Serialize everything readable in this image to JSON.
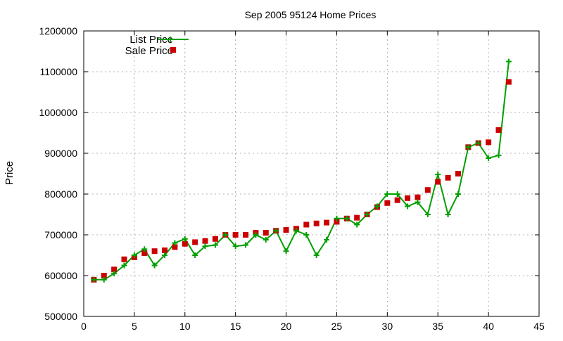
{
  "chart_data": {
    "type": "line",
    "title": "Sep 2005 95124 Home Prices",
    "xlabel": "",
    "ylabel": "Price",
    "xlim": [
      0,
      45
    ],
    "ylim": [
      500000,
      1200000
    ],
    "x_ticks": [
      0,
      5,
      10,
      15,
      20,
      25,
      30,
      35,
      40,
      45
    ],
    "y_ticks": [
      500000,
      600000,
      700000,
      800000,
      900000,
      1000000,
      1100000,
      1200000
    ],
    "grid": true,
    "legend_position": "top-left",
    "series": [
      {
        "name": "List Price",
        "style": "line with plus markers",
        "color": "#00a000",
        "x": [
          1,
          2,
          3,
          4,
          5,
          6,
          7,
          8,
          9,
          10,
          11,
          12,
          13,
          14,
          15,
          16,
          17,
          18,
          19,
          20,
          21,
          22,
          23,
          24,
          25,
          26,
          27,
          28,
          29,
          30,
          31,
          32,
          33,
          34,
          35,
          36,
          37,
          38,
          39,
          40,
          41,
          42
        ],
        "y": [
          590000,
          590000,
          605000,
          625000,
          650000,
          665000,
          625000,
          650000,
          680000,
          690000,
          650000,
          672000,
          675000,
          700000,
          672000,
          675000,
          700000,
          688000,
          710000,
          660000,
          710000,
          700000,
          650000,
          688000,
          740000,
          740000,
          725000,
          750000,
          770000,
          800000,
          800000,
          770000,
          780000,
          750000,
          848000,
          750000,
          800000,
          915000,
          925000,
          888000,
          895000,
          1125000
        ]
      },
      {
        "name": "Sale Price",
        "style": "square markers",
        "color": "#cc0000",
        "x": [
          1,
          2,
          3,
          4,
          5,
          6,
          7,
          8,
          9,
          10,
          11,
          12,
          13,
          14,
          15,
          16,
          17,
          18,
          19,
          20,
          21,
          22,
          23,
          24,
          25,
          26,
          27,
          28,
          29,
          30,
          31,
          32,
          33,
          34,
          35,
          36,
          37,
          38,
          39,
          40,
          41,
          42
        ],
        "y": [
          590000,
          600000,
          615000,
          640000,
          645000,
          655000,
          660000,
          662000,
          670000,
          678000,
          682000,
          685000,
          690000,
          700000,
          700000,
          700000,
          705000,
          705000,
          710000,
          712000,
          715000,
          725000,
          728000,
          730000,
          732000,
          740000,
          742000,
          750000,
          768000,
          778000,
          785000,
          790000,
          792000,
          810000,
          830000,
          840000,
          850000,
          915000,
          925000,
          927000,
          957000,
          1075000
        ]
      }
    ]
  }
}
